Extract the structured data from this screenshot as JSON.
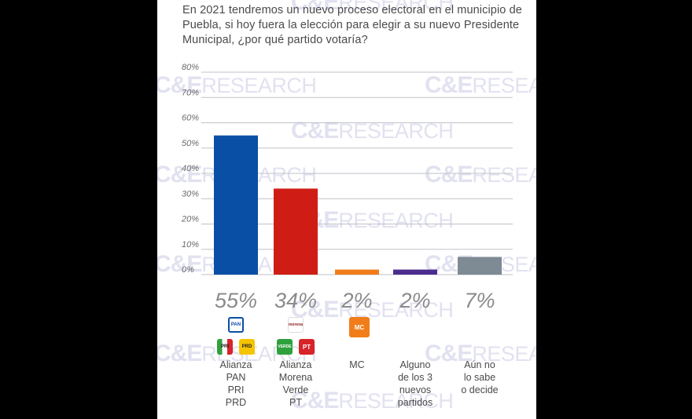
{
  "question": "En 2021 tendremos un nuevo proceso electoral en el municipio de Puebla, si hoy fuera la elección para elegir a su nuevo Presidente Municipal, ¿por qué partido votaría?",
  "watermark": {
    "part1": "C&E",
    "part2": "RESEARCH"
  },
  "colors": {
    "background": "#000000",
    "panel": "#ffffff",
    "grid": "#bfc2c8",
    "text": "#4a4a4a"
  },
  "chart_data": {
    "type": "bar",
    "categories": [
      "Alianza\nPAN\nPRI\nPRD",
      "Alianza\nMorena\nVerde\nPT",
      "MC",
      "Alguno\nde los 3\nnuevos\npartidos",
      "Aún no\nlo sabe\no decide"
    ],
    "values": [
      55,
      34,
      2,
      2,
      7
    ],
    "value_labels": [
      "55%",
      "34%",
      "2%",
      "2%",
      "7%"
    ],
    "colors": [
      "#0a4fa6",
      "#cf1d16",
      "#f07d1a",
      "#4b2d8e",
      "#7e8a94"
    ],
    "yticks": [
      "0%",
      "10%",
      "20%",
      "30%",
      "40%",
      "50%",
      "60%",
      "70%",
      "80%"
    ],
    "ylim": [
      0,
      80
    ],
    "grid": true,
    "title": "",
    "xlabel": "",
    "ylabel": ""
  },
  "party_logos": [
    {
      "name": "pan-logo",
      "text": "PAN",
      "color": "#0a4fa6"
    },
    {
      "name": "morena-logo",
      "text": "morena",
      "color": "#8b1c1c"
    },
    {
      "name": "mc-logo",
      "text": "MC",
      "color": "#f07d1a"
    },
    {
      "name": "pri-logo",
      "text": "PRI",
      "color": "#d8232a"
    },
    {
      "name": "prd-logo",
      "text": "PRD",
      "color": "#f5c400"
    },
    {
      "name": "verde-logo",
      "text": "VERDE",
      "color": "#2ea13c"
    },
    {
      "name": "pt-logo",
      "text": "PT",
      "color": "#d8232a"
    }
  ]
}
